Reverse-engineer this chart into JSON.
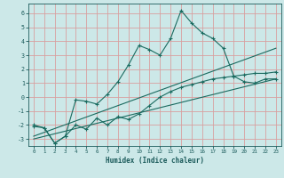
{
  "xlabel": "Humidex (Indice chaleur)",
  "bg_color": "#cce8e8",
  "grid_color": "#d8a0a0",
  "line_color": "#1a6b60",
  "xlim": [
    -0.5,
    23.5
  ],
  "ylim": [
    -3.5,
    6.7
  ],
  "yticks": [
    -3,
    -2,
    -1,
    0,
    1,
    2,
    3,
    4,
    5,
    6
  ],
  "xticks": [
    0,
    1,
    2,
    3,
    4,
    5,
    6,
    7,
    8,
    9,
    10,
    11,
    12,
    13,
    14,
    15,
    16,
    17,
    18,
    19,
    20,
    21,
    22,
    23
  ],
  "line1_x": [
    0,
    1,
    2,
    3,
    4,
    5,
    6,
    7,
    8,
    9,
    10,
    11,
    12,
    13,
    14,
    15,
    16,
    17,
    18,
    19,
    20,
    21,
    22,
    23
  ],
  "line1_y": [
    -2.0,
    -2.2,
    -3.3,
    -2.8,
    -0.2,
    -0.3,
    -0.5,
    0.2,
    1.1,
    2.3,
    3.7,
    3.4,
    3.0,
    4.2,
    6.2,
    5.3,
    4.6,
    4.2,
    3.5,
    1.5,
    1.1,
    1.0,
    1.3,
    1.3
  ],
  "line2_x": [
    0,
    1,
    2,
    3,
    4,
    5,
    6,
    7,
    8,
    9,
    10,
    11,
    12,
    13,
    14,
    15,
    16,
    17,
    18,
    19,
    20,
    21,
    22,
    23
  ],
  "line2_y": [
    -2.1,
    -2.2,
    -3.3,
    -2.8,
    -2.0,
    -2.3,
    -1.5,
    -2.0,
    -1.4,
    -1.6,
    -1.2,
    -0.6,
    0.0,
    0.4,
    0.7,
    0.9,
    1.1,
    1.3,
    1.4,
    1.5,
    1.6,
    1.7,
    1.7,
    1.8
  ],
  "line3_x": [
    0,
    23
  ],
  "line3_y": [
    -2.8,
    3.5
  ],
  "line4_x": [
    0,
    23
  ],
  "line4_y": [
    -3.0,
    1.3
  ]
}
